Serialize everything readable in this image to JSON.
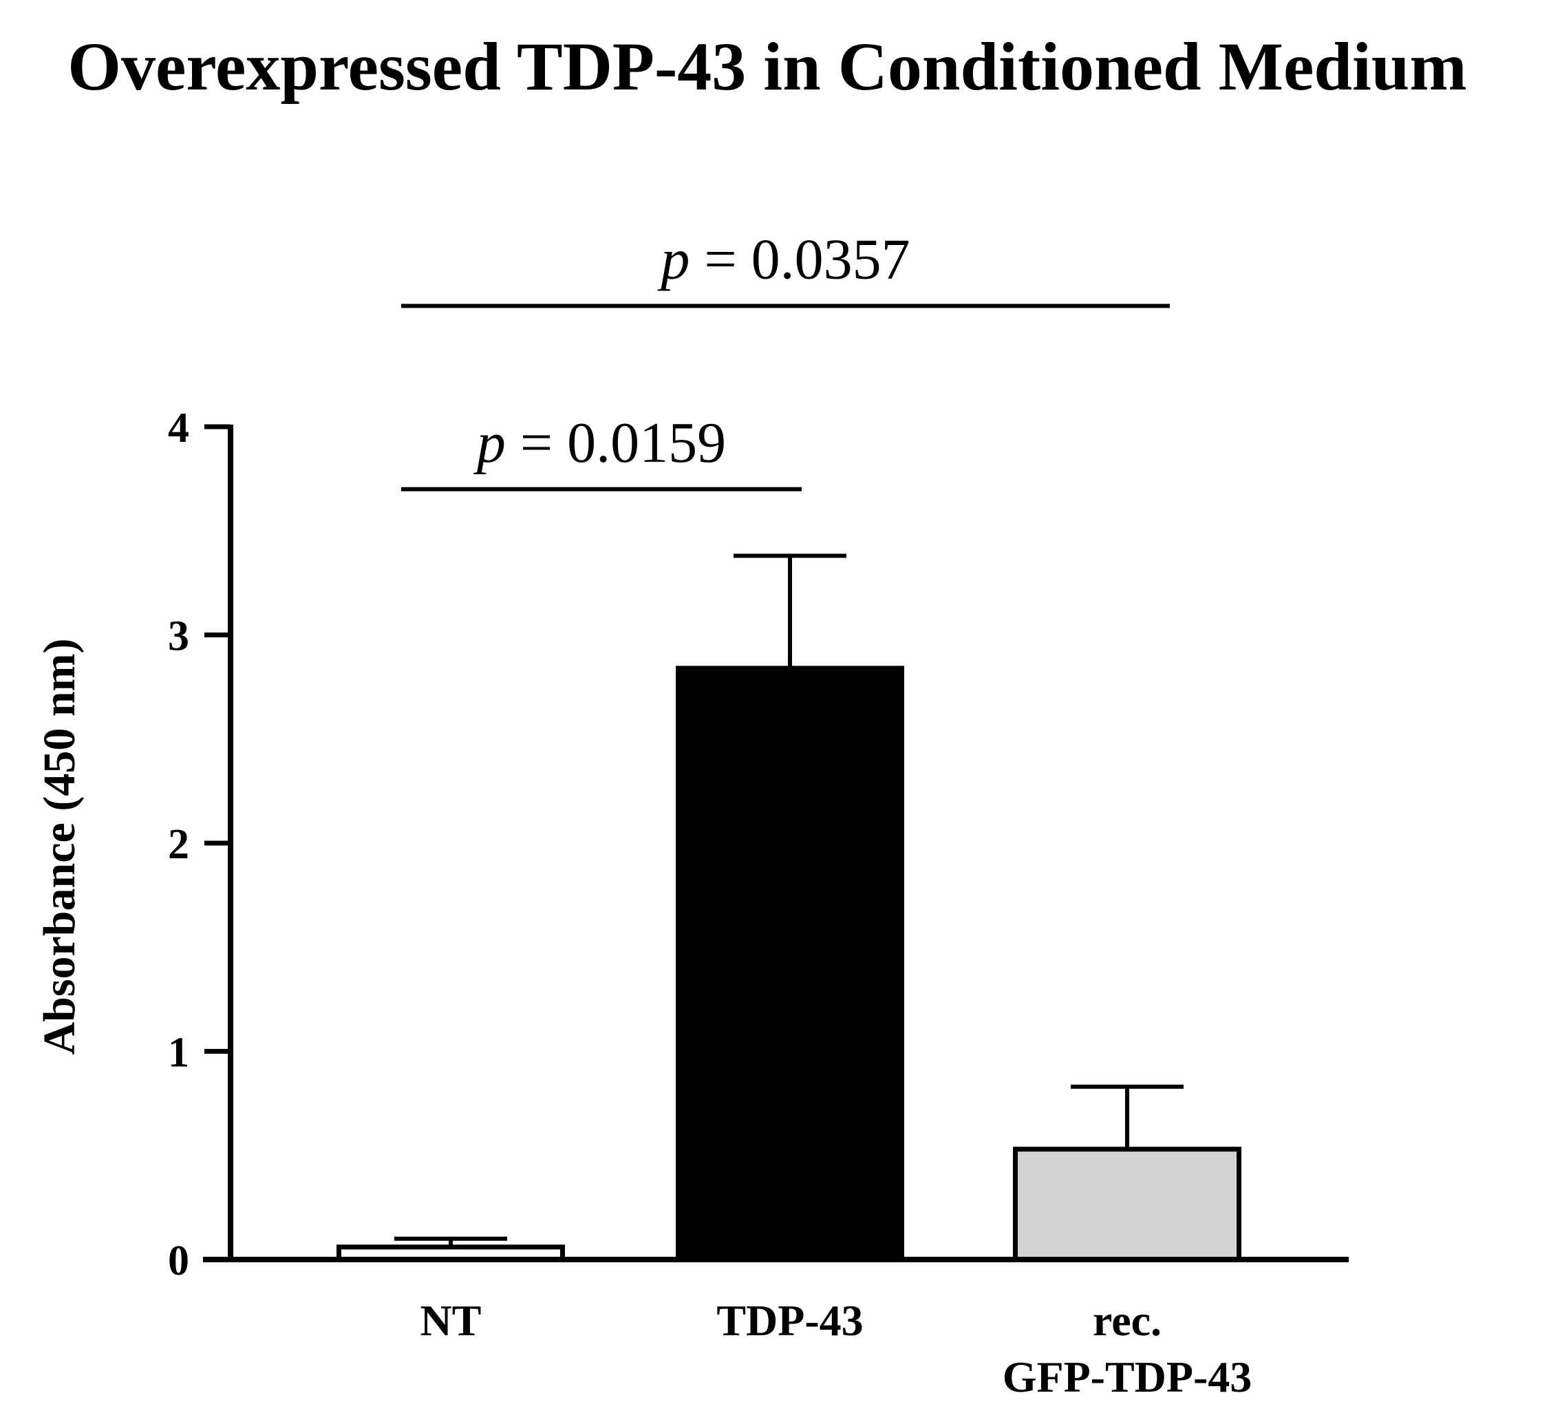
{
  "chart_data": {
    "type": "bar",
    "title": "Overexpressed TDP-43 in Conditioned Medium",
    "xlabel": "",
    "ylabel": "Absorbance (450 nm)",
    "ylim": [
      0,
      4
    ],
    "yticks": [
      0,
      1,
      2,
      3,
      4
    ],
    "categories": [
      {
        "lines": [
          "NT"
        ]
      },
      {
        "lines": [
          "TDP-43"
        ]
      },
      {
        "lines": [
          "rec.",
          "GFP-TDP-43"
        ]
      }
    ],
    "values": [
      0.06,
      2.84,
      0.53
    ],
    "errors": [
      0.04,
      0.54,
      0.3
    ],
    "bar_colors": [
      "#ffffff",
      "#000000",
      "#d3d3d3"
    ],
    "significance": [
      {
        "from": 0,
        "to": 1,
        "p_label": "p",
        "p_value": "= 0.0159",
        "y": 3.7
      },
      {
        "from": 0,
        "to": 2,
        "p_label": "p",
        "p_value": "= 0.0357",
        "y": 4.58
      }
    ]
  }
}
